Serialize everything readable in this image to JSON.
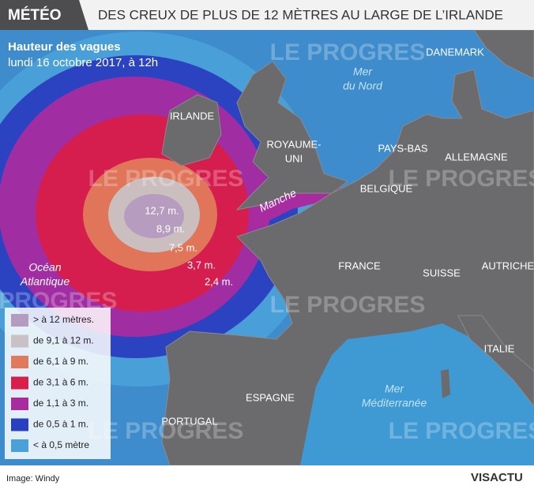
{
  "header": {
    "tag": "MÉTÉO",
    "title": "DES CREUX DE PLUS DE 12 MÈTRES AU LARGE DE L’IRLANDE"
  },
  "subtitle": {
    "line1": "Hauteur des vagues",
    "line2": "lundi 16 octobre 2017, à 12h"
  },
  "places": [
    {
      "lines": [
        "DANEMARK"
      ]
    },
    {
      "lines": [
        "Mer",
        "du Nord"
      ]
    },
    {
      "lines": [
        "IRLANDE"
      ]
    },
    {
      "lines": [
        "ROYAUME-",
        "UNI"
      ]
    },
    {
      "lines": [
        "PAYS-BAS"
      ]
    },
    {
      "lines": [
        "ALLEMAGNE"
      ]
    },
    {
      "lines": [
        "BELGIQUE"
      ]
    },
    {
      "lines": [
        "Manche"
      ]
    },
    {
      "lines": [
        "FRANCE"
      ]
    },
    {
      "lines": [
        "SUISSE"
      ]
    },
    {
      "lines": [
        "AUTRICHE"
      ]
    },
    {
      "lines": [
        "ITALIE"
      ]
    },
    {
      "lines": [
        "ESPAGNE"
      ]
    },
    {
      "lines": [
        "PORTUGAL"
      ]
    },
    {
      "lines": [
        "Mer",
        "Méditerranée"
      ]
    },
    {
      "lines": [
        "Océan",
        "Atlantique"
      ]
    }
  ],
  "wave_labels": [
    "12,7 m.",
    "8,9 m.",
    "7,5 m.",
    "3,7 m.",
    "2,4 m."
  ],
  "legend": [
    {
      "label": "> à 12 mètres.",
      "color": "#b49bc0"
    },
    {
      "label": "de 9,1 à 12 m.",
      "color": "#c9c2c4"
    },
    {
      "label": "de 6,1 à 9 m.",
      "color": "#e07a5a"
    },
    {
      "label": "de 3,1 à 6 m.",
      "color": "#d81e4a"
    },
    {
      "label": "de 1,1 à 3 m.",
      "color": "#a82ca0"
    },
    {
      "label": "de 0,5 à 1 m.",
      "color": "#2a3ec0"
    },
    {
      "label": "< à 0,5 mètre",
      "color": "#4aa0d8"
    }
  ],
  "watermarks": [
    "LE PROGRES",
    "LE PROGRES",
    "LE PROGRES",
    "LE PROGRES",
    "LE PROGRES",
    "LE PROGRES",
    "LE PROGRES"
  ],
  "footer": {
    "credit": "Image: Windy",
    "logo": "VISACTU"
  }
}
